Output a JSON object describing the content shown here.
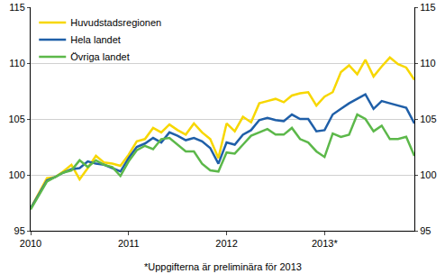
{
  "chart_data": {
    "type": "line",
    "categories": [
      "2010",
      null,
      null,
      null,
      null,
      null,
      null,
      null,
      null,
      null,
      null,
      null,
      "2011",
      null,
      null,
      null,
      null,
      null,
      null,
      null,
      null,
      null,
      null,
      null,
      "2012",
      null,
      null,
      null,
      null,
      null,
      null,
      null,
      null,
      null,
      null,
      null,
      "2013*",
      null,
      null,
      null,
      null,
      null,
      null,
      null,
      null,
      null,
      null,
      null
    ],
    "series": [
      {
        "name": "Huvudstadsregionen",
        "color": "#f7d700",
        "values": [
          97.0,
          98.3,
          99.7,
          99.8,
          100.3,
          100.9,
          99.6,
          100.6,
          101.7,
          101.1,
          101.0,
          100.8,
          101.8,
          103.0,
          103.2,
          104.2,
          103.8,
          104.5,
          104.0,
          103.6,
          104.6,
          103.8,
          103.2,
          101.5,
          104.6,
          103.9,
          105.2,
          104.7,
          106.4,
          106.6,
          106.8,
          106.5,
          107.1,
          107.3,
          107.4,
          106.2,
          107.0,
          107.4,
          109.2,
          109.8,
          109.0,
          110.3,
          108.8,
          109.7,
          110.5,
          109.9,
          109.6,
          108.5
        ]
      },
      {
        "name": "Hela landet",
        "color": "#1f5fa8",
        "values": [
          97.0,
          98.2,
          99.5,
          99.8,
          100.2,
          100.5,
          100.6,
          101.2,
          101.0,
          100.9,
          100.6,
          100.3,
          101.5,
          102.5,
          102.8,
          103.3,
          102.9,
          103.8,
          103.5,
          103.1,
          103.3,
          103.0,
          102.4,
          101.0,
          102.9,
          102.7,
          103.6,
          104.0,
          104.9,
          105.1,
          104.9,
          104.8,
          105.4,
          105.0,
          105.0,
          103.9,
          104.0,
          105.4,
          105.9,
          106.4,
          106.8,
          107.2,
          105.9,
          106.6,
          106.4,
          106.2,
          106.0,
          104.6
        ]
      },
      {
        "name": "Övriga landet",
        "color": "#5cb84a",
        "values": [
          96.9,
          98.2,
          99.4,
          99.8,
          100.2,
          100.4,
          101.3,
          100.7,
          101.3,
          100.9,
          100.7,
          99.9,
          101.2,
          102.2,
          102.6,
          102.3,
          103.2,
          103.3,
          102.7,
          102.1,
          102.1,
          101.0,
          100.4,
          100.3,
          102.0,
          101.9,
          102.7,
          103.5,
          103.8,
          104.1,
          103.6,
          103.6,
          104.2,
          103.2,
          102.9,
          102.1,
          101.6,
          103.7,
          103.4,
          103.6,
          105.4,
          105.0,
          103.9,
          104.4,
          103.2,
          103.2,
          103.4,
          101.7
        ]
      }
    ],
    "ylim": [
      95,
      115
    ],
    "yticks": [
      95,
      100,
      105,
      110,
      115
    ],
    "y2lim": [
      95,
      115
    ],
    "y2ticks": [
      95,
      100,
      105,
      110,
      115
    ],
    "grid": true,
    "legend": "top-left",
    "caption": "*Uppgifterna är preliminära för 2013"
  }
}
